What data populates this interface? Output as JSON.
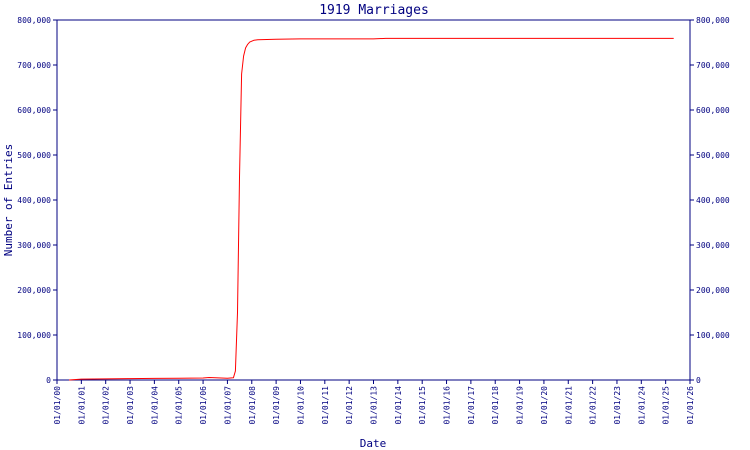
{
  "chart_data": {
    "type": "line",
    "title": "1919 Marriages",
    "xlabel": "Date",
    "ylabel": "Number of Entries",
    "x_tick_labels": [
      "01/01/00",
      "01/01/01",
      "01/01/02",
      "01/01/03",
      "01/01/04",
      "01/01/05",
      "01/01/06",
      "01/01/07",
      "01/01/08",
      "01/01/09",
      "01/01/10",
      "01/01/11",
      "01/01/12",
      "01/01/13",
      "01/01/14",
      "01/01/15",
      "01/01/16",
      "01/01/17",
      "01/01/18",
      "01/01/19",
      "01/01/20",
      "01/01/21",
      "01/01/22",
      "01/01/23",
      "01/01/24",
      "01/01/25",
      "01/01/26"
    ],
    "y_ticks": [
      0,
      100000,
      200000,
      300000,
      400000,
      500000,
      600000,
      700000,
      800000
    ],
    "y_tick_labels": [
      "0",
      "100,000",
      "200,000",
      "300,000",
      "400,000",
      "500,000",
      "600,000",
      "700,000",
      "800,000"
    ],
    "ylim": [
      0,
      800000
    ],
    "grid": false,
    "series": [
      {
        "color": "#ff0000",
        "x": [
          "2000-07-01",
          "2001-01-01",
          "2002-01-01",
          "2003-01-01",
          "2004-01-01",
          "2005-01-01",
          "2006-01-01",
          "2006-04-01",
          "2007-01-01",
          "2007-04-01",
          "2007-05-01",
          "2007-06-01",
          "2007-07-01",
          "2007-08-01",
          "2007-09-01",
          "2007-10-01",
          "2007-11-01",
          "2007-12-01",
          "2008-02-01",
          "2008-04-01",
          "2009-01-01",
          "2010-01-01",
          "2013-01-01",
          "2013-07-01",
          "2014-01-01",
          "2020-01-01",
          "2025-05-01"
        ],
        "y": [
          0,
          2000,
          2500,
          3000,
          3500,
          4000,
          4500,
          5500,
          4000,
          5000,
          20000,
          150000,
          450000,
          680000,
          720000,
          738000,
          746000,
          751000,
          755000,
          756000,
          757000,
          758000,
          758000,
          759000,
          759000,
          759000,
          759000
        ]
      }
    ]
  },
  "colors": {
    "axis": "#000080",
    "line": "#ff0000",
    "title": "#000080"
  }
}
